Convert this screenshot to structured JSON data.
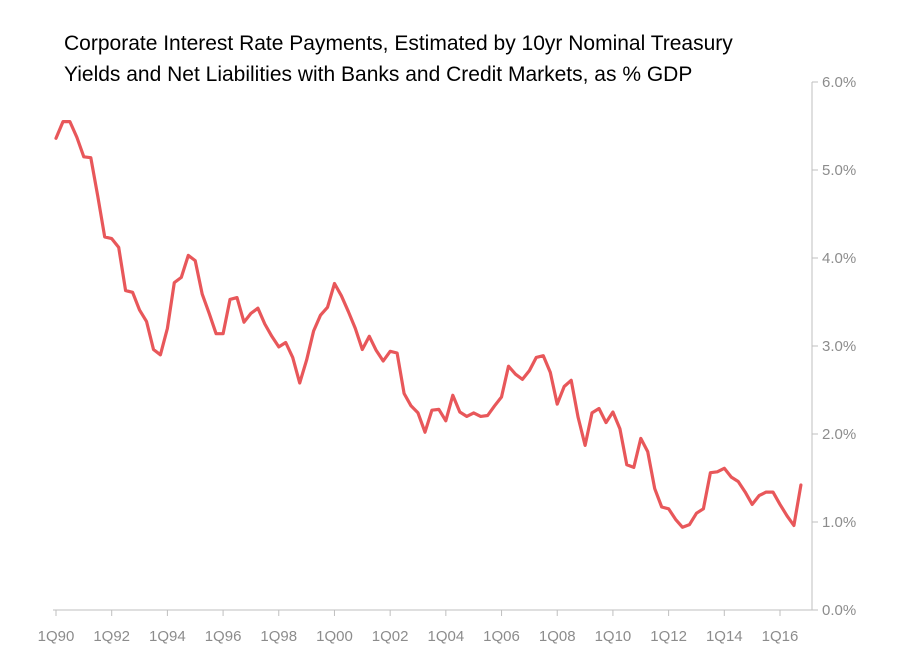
{
  "chart_data": {
    "type": "line",
    "title": "Corporate Interest Rate Payments, Estimated by 10yr Nominal Treasury Yields and Net Liabilities with Banks and Credit Markets, as % GDP",
    "xlabel": "",
    "ylabel": "",
    "ylim": [
      0,
      6
    ],
    "y_ticks": [
      "0.0%",
      "1.0%",
      "2.0%",
      "3.0%",
      "4.0%",
      "5.0%",
      "6.0%"
    ],
    "x_ticks": [
      "1Q90",
      "1Q92",
      "1Q94",
      "1Q96",
      "1Q98",
      "1Q00",
      "1Q02",
      "1Q04",
      "1Q06",
      "1Q08",
      "1Q10",
      "1Q12",
      "1Q14",
      "1Q16"
    ],
    "y_axis_position": "right",
    "grid": false,
    "legend": "none",
    "colors": {
      "series": "#e8575a",
      "axis": "#bfbfbf",
      "tick_text": "#8c8c8c"
    },
    "series": [
      {
        "start": "1Q90",
        "frequency": "quarterly",
        "values": [
          5.36,
          5.55,
          5.55,
          5.37,
          5.15,
          5.14,
          4.7,
          4.24,
          4.22,
          4.12,
          3.63,
          3.61,
          3.41,
          3.28,
          2.96,
          2.9,
          3.2,
          3.72,
          3.78,
          4.03,
          3.97,
          3.59,
          3.37,
          3.14,
          3.14,
          3.53,
          3.55,
          3.27,
          3.37,
          3.43,
          3.25,
          3.11,
          2.99,
          3.04,
          2.87,
          2.58,
          2.84,
          3.17,
          3.35,
          3.44,
          3.71,
          3.57,
          3.39,
          3.2,
          2.96,
          3.11,
          2.95,
          2.83,
          2.94,
          2.92,
          2.46,
          2.32,
          2.24,
          2.02,
          2.27,
          2.28,
          2.15,
          2.44,
          2.25,
          2.2,
          2.24,
          2.2,
          2.21,
          2.32,
          2.42,
          2.77,
          2.68,
          2.62,
          2.72,
          2.87,
          2.89,
          2.7,
          2.34,
          2.54,
          2.61,
          2.19,
          1.87,
          2.24,
          2.29,
          2.13,
          2.25,
          2.06,
          1.65,
          1.62,
          1.95,
          1.8,
          1.38,
          1.17,
          1.15,
          1.03,
          0.94,
          0.97,
          1.1,
          1.15,
          1.56,
          1.57,
          1.61,
          1.51,
          1.46,
          1.34,
          1.2,
          1.3,
          1.34,
          1.34,
          1.2,
          1.07,
          0.96,
          1.42
        ]
      }
    ]
  }
}
